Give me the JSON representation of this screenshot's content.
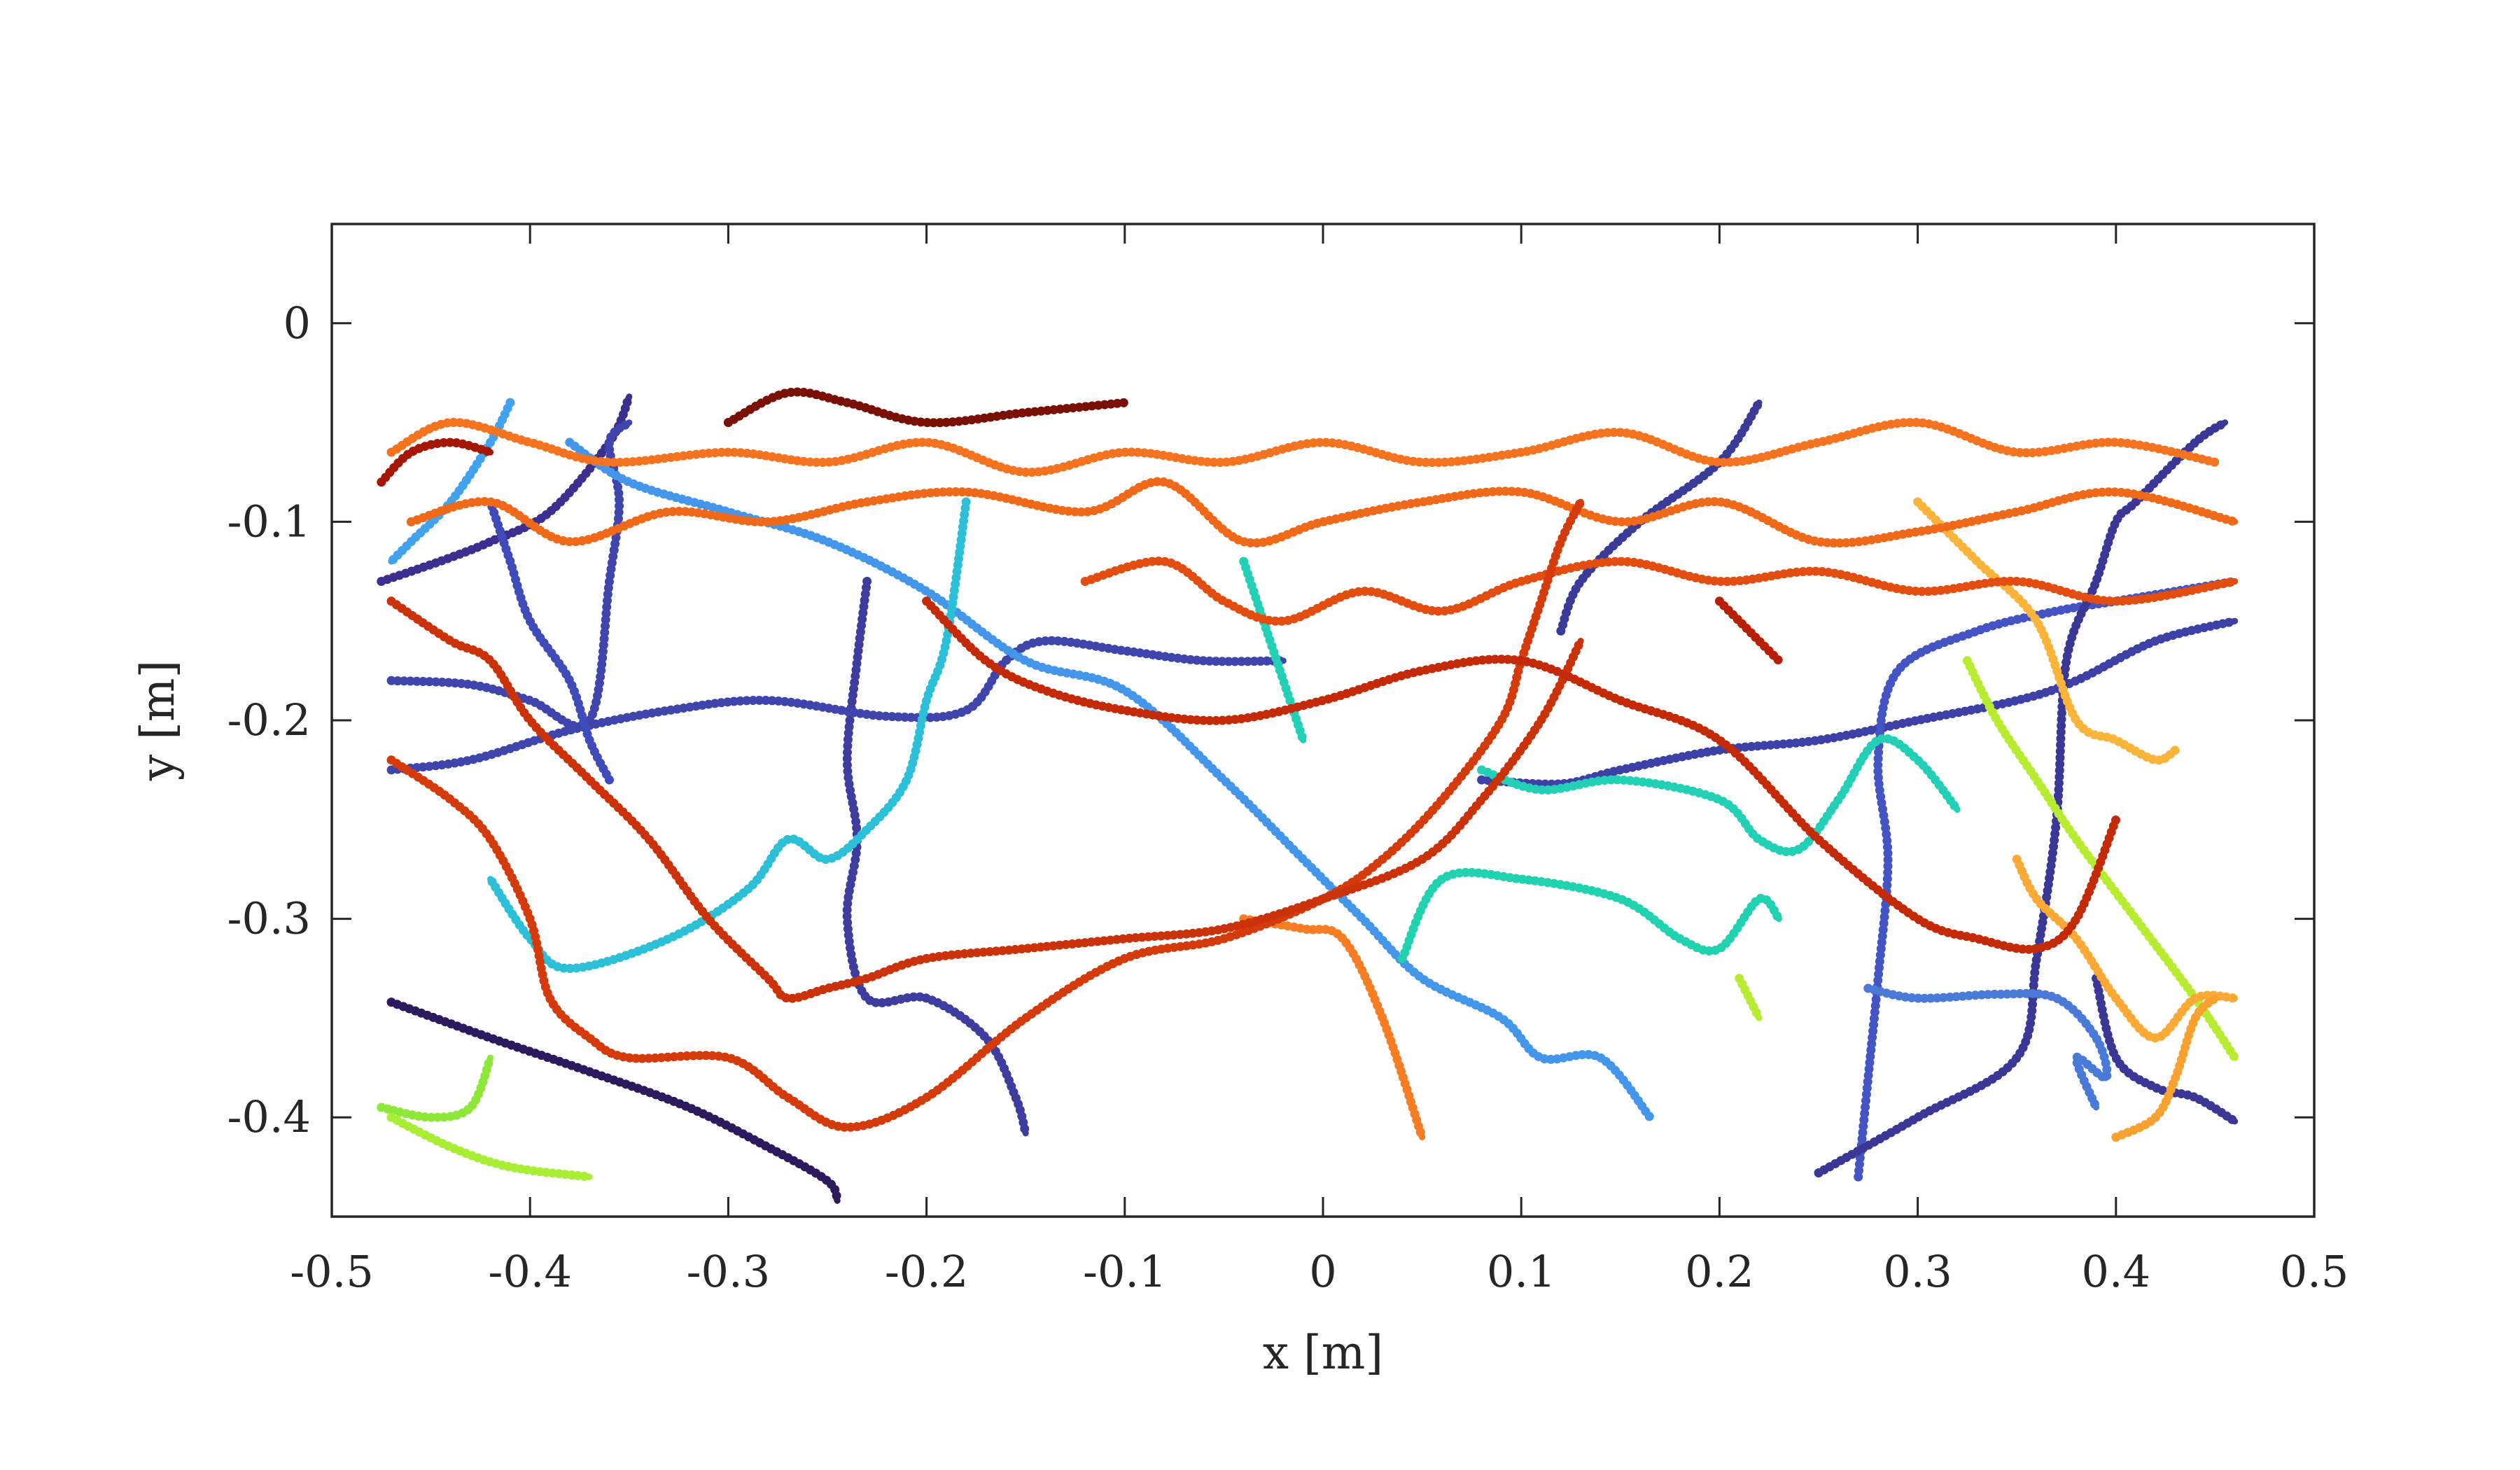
{
  "chart_data": {
    "type": "line",
    "title": "",
    "xlabel": "x [m]",
    "ylabel": "y [m]",
    "xlim": [
      -0.5,
      0.5
    ],
    "ylim": [
      -0.45,
      0.05
    ],
    "xticks": [
      -0.5,
      -0.4,
      -0.3,
      -0.2,
      -0.1,
      0,
      0.1,
      0.2,
      0.3,
      0.4,
      0.5
    ],
    "xtick_labels": [
      "-0.5",
      "-0.4",
      "-0.3",
      "-0.2",
      "-0.1",
      "0",
      "0.1",
      "0.2",
      "0.3",
      "0.4",
      "0.5"
    ],
    "yticks": [
      0,
      -0.1,
      -0.2,
      -0.3,
      -0.4
    ],
    "ytick_labels": [
      "0",
      "-0.1",
      "-0.2",
      "-0.3",
      "-0.4"
    ],
    "grid": false,
    "legend": "none",
    "marker_style": "dots",
    "series": [
      {
        "color": "#2d1a5e",
        "x": [
          -0.47,
          -0.42,
          -0.37,
          -0.32,
          -0.28,
          -0.25,
          -0.245
        ],
        "y": [
          -0.342,
          -0.36,
          -0.377,
          -0.395,
          -0.415,
          -0.432,
          -0.442
        ]
      },
      {
        "color": "#3b2f8f",
        "x": [
          -0.475,
          -0.46,
          -0.44,
          -0.42,
          -0.39,
          -0.36,
          -0.35
        ],
        "y": [
          -0.13,
          -0.125,
          -0.118,
          -0.11,
          -0.095,
          -0.06,
          -0.037
        ]
      },
      {
        "color": "#3e3c9e",
        "x": [
          -0.23,
          -0.235,
          -0.24,
          -0.235,
          -0.24,
          -0.23,
          -0.2,
          -0.17,
          -0.155,
          -0.15
        ],
        "y": [
          -0.13,
          -0.17,
          -0.22,
          -0.26,
          -0.3,
          -0.34,
          -0.34,
          -0.36,
          -0.39,
          -0.408
        ]
      },
      {
        "color": "#3f45ad",
        "x": [
          -0.47,
          -0.43,
          -0.38,
          -0.33,
          -0.28,
          -0.22,
          -0.18,
          -0.16,
          -0.14,
          -0.1,
          -0.06,
          -0.02
        ],
        "y": [
          -0.225,
          -0.22,
          -0.205,
          -0.195,
          -0.19,
          -0.198,
          -0.195,
          -0.17,
          -0.16,
          -0.165,
          -0.17,
          -0.17
        ]
      },
      {
        "color": "#3f45ad",
        "x": [
          -0.47,
          -0.43,
          -0.4,
          -0.37,
          -0.36,
          -0.355,
          -0.36,
          -0.35
        ],
        "y": [
          -0.18,
          -0.182,
          -0.19,
          -0.2,
          -0.13,
          -0.09,
          -0.06,
          -0.05
        ]
      },
      {
        "color": "#3f4bb8",
        "x": [
          -0.36,
          -0.37,
          -0.38,
          -0.4,
          -0.41,
          -0.42
        ],
        "y": [
          -0.23,
          -0.21,
          -0.18,
          -0.15,
          -0.12,
          -0.09
        ]
      },
      {
        "color": "#3a3b98",
        "x": [
          0.12,
          0.13,
          0.16,
          0.2,
          0.22
        ],
        "y": [
          -0.155,
          -0.13,
          -0.1,
          -0.07,
          -0.04
        ]
      },
      {
        "color": "#3d40a6",
        "x": [
          0.08,
          0.12,
          0.15,
          0.2,
          0.25,
          0.3,
          0.35,
          0.38,
          0.42,
          0.46
        ],
        "y": [
          -0.23,
          -0.232,
          -0.225,
          -0.215,
          -0.21,
          -0.2,
          -0.19,
          -0.18,
          -0.16,
          -0.15
        ]
      },
      {
        "color": "#4554c4",
        "x": [
          0.27,
          0.275,
          0.28,
          0.285,
          0.28,
          0.29,
          0.33,
          0.37,
          0.4,
          0.43,
          0.46
        ],
        "y": [
          -0.43,
          -0.38,
          -0.33,
          -0.27,
          -0.22,
          -0.175,
          -0.155,
          -0.145,
          -0.14,
          -0.135,
          -0.13
        ]
      },
      {
        "color": "#3a3796",
        "x": [
          0.25,
          0.3,
          0.35,
          0.36,
          0.37,
          0.375,
          0.39,
          0.4,
          0.41,
          0.44,
          0.455
        ],
        "y": [
          -0.428,
          -0.4,
          -0.37,
          -0.32,
          -0.25,
          -0.17,
          -0.13,
          -0.1,
          -0.09,
          -0.06,
          -0.05
        ]
      },
      {
        "color": "#3a3796",
        "x": [
          0.39,
          0.4,
          0.42,
          0.44,
          0.46
        ],
        "y": [
          -0.33,
          -0.37,
          -0.385,
          -0.39,
          -0.402
        ]
      },
      {
        "color": "#4a7ad8",
        "x": [
          0.275,
          0.3,
          0.34,
          0.37,
          0.39,
          0.395,
          0.38,
          0.39
        ],
        "y": [
          -0.335,
          -0.34,
          -0.338,
          -0.34,
          -0.36,
          -0.38,
          -0.37,
          -0.395
        ]
      },
      {
        "color": "#4396ea",
        "x": [
          -0.38,
          -0.35,
          -0.3,
          -0.25,
          -0.2,
          -0.15,
          -0.1,
          -0.05,
          -0.01,
          0.02,
          0.05,
          0.09,
          0.11,
          0.14,
          0.165
        ],
        "y": [
          -0.06,
          -0.08,
          -0.095,
          -0.11,
          -0.135,
          -0.17,
          -0.185,
          -0.23,
          -0.27,
          -0.3,
          -0.33,
          -0.35,
          -0.37,
          -0.37,
          -0.4
        ]
      },
      {
        "color": "#41a2f0",
        "x": [
          -0.41,
          -0.42,
          -0.44,
          -0.46,
          -0.47
        ],
        "y": [
          -0.04,
          -0.06,
          -0.09,
          -0.11,
          -0.12
        ]
      },
      {
        "color": "#2cc0d8",
        "x": [
          -0.18,
          -0.19,
          -0.2,
          -0.21,
          -0.23,
          -0.25,
          -0.27,
          -0.29,
          -0.33,
          -0.38,
          -0.4,
          -0.42
        ],
        "y": [
          -0.09,
          -0.16,
          -0.19,
          -0.23,
          -0.255,
          -0.27,
          -0.26,
          -0.285,
          -0.31,
          -0.325,
          -0.31,
          -0.28
        ]
      },
      {
        "color": "#1fd2b0",
        "x": [
          0.04,
          0.06,
          0.1,
          0.15,
          0.18,
          0.2,
          0.22,
          0.23
        ],
        "y": [
          -0.32,
          -0.28,
          -0.28,
          -0.29,
          -0.31,
          -0.315,
          -0.29,
          -0.3
        ]
      },
      {
        "color": "#22d0b6",
        "x": [
          -0.04,
          -0.03,
          -0.02,
          -0.01
        ],
        "y": [
          -0.12,
          -0.15,
          -0.18,
          -0.21
        ]
      },
      {
        "color": "#22d0b6",
        "x": [
          0.08,
          0.11,
          0.15,
          0.2,
          0.22,
          0.24,
          0.26,
          0.28,
          0.3,
          0.32
        ],
        "y": [
          -0.225,
          -0.235,
          -0.23,
          -0.24,
          -0.26,
          -0.265,
          -0.24,
          -0.21,
          -0.22,
          -0.245
        ]
      },
      {
        "color": "#8de838",
        "x": [
          -0.475,
          -0.45,
          -0.43,
          -0.42
        ],
        "y": [
          -0.395,
          -0.4,
          -0.395,
          -0.37
        ]
      },
      {
        "color": "#a7ee34",
        "x": [
          -0.47,
          -0.44,
          -0.41,
          -0.37
        ],
        "y": [
          -0.4,
          -0.415,
          -0.425,
          -0.43
        ]
      },
      {
        "color": "#b8ec30",
        "x": [
          0.325,
          0.34,
          0.36,
          0.38,
          0.41,
          0.44,
          0.46
        ],
        "y": [
          -0.17,
          -0.2,
          -0.23,
          -0.26,
          -0.3,
          -0.34,
          -0.37
        ]
      },
      {
        "color": "#b8ec30",
        "x": [
          0.21,
          0.215,
          0.22
        ],
        "y": [
          -0.33,
          -0.34,
          -0.35
        ]
      },
      {
        "color": "#fbb43a",
        "x": [
          0.3,
          0.33,
          0.36,
          0.38,
          0.4,
          0.42,
          0.43
        ],
        "y": [
          -0.09,
          -0.12,
          -0.15,
          -0.2,
          -0.21,
          -0.22,
          -0.215
        ]
      },
      {
        "color": "#fba835",
        "x": [
          0.35,
          0.36,
          0.38,
          0.4,
          0.42,
          0.44,
          0.46
        ],
        "y": [
          -0.27,
          -0.29,
          -0.31,
          -0.34,
          -0.36,
          -0.34,
          -0.34
        ]
      },
      {
        "color": "#f8a12e",
        "x": [
          0.4,
          0.42,
          0.43,
          0.44,
          0.45
        ],
        "y": [
          -0.41,
          -0.4,
          -0.38,
          -0.35,
          -0.34
        ]
      },
      {
        "color": "#f87c22",
        "x": [
          -0.04,
          -0.01,
          0.01,
          0.03,
          0.05
        ],
        "y": [
          -0.3,
          -0.305,
          -0.31,
          -0.35,
          -0.41
        ]
      },
      {
        "color": "#f5731f",
        "x": [
          -0.47,
          -0.44,
          -0.4,
          -0.36,
          -0.3,
          -0.25,
          -0.2,
          -0.15,
          -0.1,
          -0.05,
          0.0,
          0.05,
          0.1,
          0.15,
          0.2,
          0.25,
          0.3,
          0.35,
          0.4,
          0.45
        ],
        "y": [
          -0.065,
          -0.05,
          -0.06,
          -0.07,
          -0.065,
          -0.07,
          -0.06,
          -0.075,
          -0.065,
          -0.07,
          -0.06,
          -0.07,
          -0.065,
          -0.055,
          -0.07,
          -0.06,
          -0.05,
          -0.065,
          -0.06,
          -0.07
        ]
      },
      {
        "color": "#f06918",
        "x": [
          -0.46,
          -0.42,
          -0.38,
          -0.33,
          -0.28,
          -0.23,
          -0.18,
          -0.12,
          -0.08,
          -0.04,
          0.0,
          0.05,
          0.1,
          0.15,
          0.2,
          0.25,
          0.3,
          0.35,
          0.4,
          0.46
        ],
        "y": [
          -0.1,
          -0.09,
          -0.11,
          -0.095,
          -0.1,
          -0.09,
          -0.085,
          -0.095,
          -0.08,
          -0.11,
          -0.1,
          -0.09,
          -0.085,
          -0.1,
          -0.09,
          -0.11,
          -0.105,
          -0.095,
          -0.085,
          -0.1
        ]
      },
      {
        "color": "#e34d10",
        "x": [
          -0.12,
          -0.08,
          -0.05,
          -0.02,
          0.02,
          0.06,
          0.1,
          0.15,
          0.2,
          0.25,
          0.3,
          0.35,
          0.4,
          0.46
        ],
        "y": [
          -0.13,
          -0.12,
          -0.14,
          -0.15,
          -0.135,
          -0.145,
          -0.13,
          -0.12,
          -0.13,
          -0.125,
          -0.135,
          -0.13,
          -0.14,
          -0.13
        ]
      },
      {
        "color": "#d53a0b",
        "x": [
          -0.47,
          -0.44,
          -0.42,
          -0.4,
          -0.39,
          -0.37,
          -0.35,
          -0.3,
          -0.27,
          -0.24,
          -0.2,
          -0.15,
          -0.1,
          -0.05,
          0.0,
          0.03,
          0.06,
          0.09,
          0.1,
          0.11,
          0.12,
          0.13
        ],
        "y": [
          -0.22,
          -0.24,
          -0.26,
          -0.3,
          -0.34,
          -0.36,
          -0.37,
          -0.37,
          -0.39,
          -0.405,
          -0.39,
          -0.35,
          -0.32,
          -0.31,
          -0.29,
          -0.27,
          -0.24,
          -0.2,
          -0.17,
          -0.14,
          -0.11,
          -0.09
        ]
      },
      {
        "color": "#cc3209",
        "x": [
          -0.47,
          -0.44,
          -0.42,
          -0.4,
          -0.37,
          -0.34,
          -0.31,
          -0.28,
          -0.27,
          -0.25,
          -0.23,
          -0.2,
          -0.15,
          -0.1,
          -0.05,
          0.0,
          0.05,
          0.08,
          0.11,
          0.13
        ],
        "y": [
          -0.14,
          -0.16,
          -0.17,
          -0.2,
          -0.23,
          -0.26,
          -0.3,
          -0.33,
          -0.34,
          -0.335,
          -0.33,
          -0.32,
          -0.315,
          -0.31,
          -0.305,
          -0.29,
          -0.27,
          -0.24,
          -0.2,
          -0.16
        ]
      },
      {
        "color": "#c42a07",
        "x": [
          -0.2,
          -0.17,
          -0.14,
          -0.1,
          -0.05,
          0.0,
          0.05,
          0.1,
          0.15,
          0.2,
          0.25,
          0.3,
          0.33,
          0.36,
          0.38,
          0.4
        ],
        "y": [
          -0.14,
          -0.17,
          -0.185,
          -0.195,
          -0.2,
          -0.19,
          -0.175,
          -0.17,
          -0.19,
          -0.21,
          -0.26,
          -0.3,
          -0.31,
          -0.315,
          -0.3,
          -0.25
        ]
      },
      {
        "color": "#b82006",
        "x": [
          0.2,
          0.21,
          0.22,
          0.23
        ],
        "y": [
          -0.14,
          -0.15,
          -0.16,
          -0.17
        ]
      },
      {
        "color": "#a51704",
        "x": [
          -0.475,
          -0.46,
          -0.44,
          -0.42
        ],
        "y": [
          -0.08,
          -0.065,
          -0.06,
          -0.065
        ]
      },
      {
        "color": "#7a0f03",
        "x": [
          -0.3,
          -0.27,
          -0.24,
          -0.2,
          -0.15,
          -0.1
        ],
        "y": [
          -0.05,
          -0.035,
          -0.04,
          -0.05,
          -0.045,
          -0.04
        ]
      }
    ]
  }
}
